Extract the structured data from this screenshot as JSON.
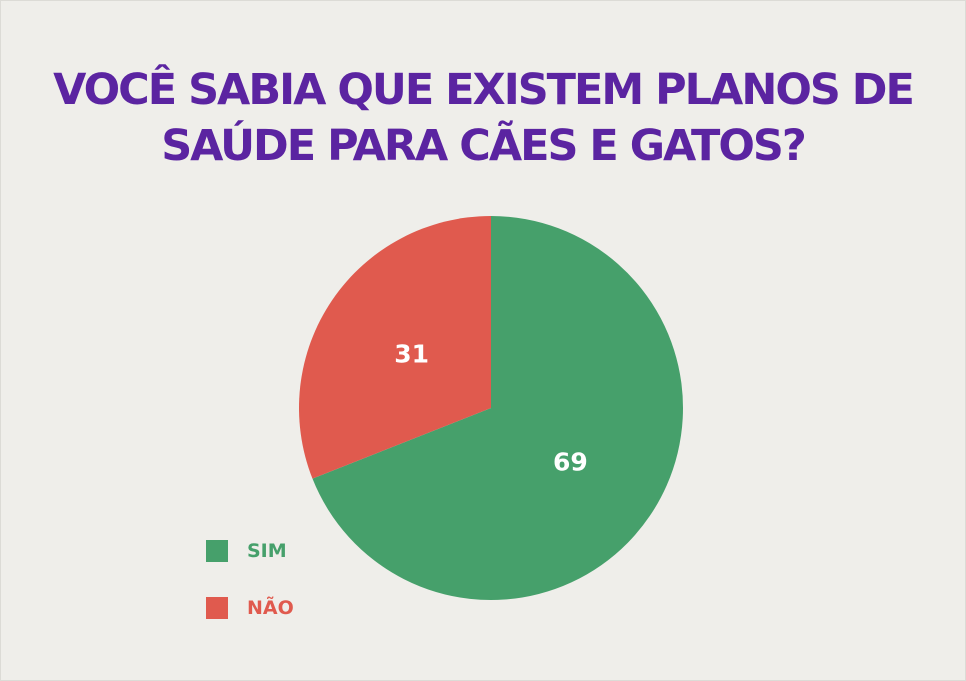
{
  "colors": {
    "title": "#5b24a1",
    "sim": "#46a06b",
    "nao": "#e05a4e",
    "slice_label": "#ffffff"
  },
  "chart_data": {
    "type": "pie",
    "title_lines": [
      "VOCÊ SABIA QUE EXISTEM PLANOS DE",
      "SAÚDE PARA CÃES E GATOS?"
    ],
    "slices": [
      {
        "name": "SIM",
        "value": 69,
        "label": "69",
        "color": "#46a06b"
      },
      {
        "name": "NÃO",
        "value": 31,
        "label": "31",
        "color": "#e05a4e"
      }
    ],
    "legend": {
      "placement": "bottom-left",
      "items": [
        {
          "label": "SIM",
          "color": "#46a06b"
        },
        {
          "label": "NÃO",
          "color": "#e05a4e"
        }
      ]
    }
  }
}
